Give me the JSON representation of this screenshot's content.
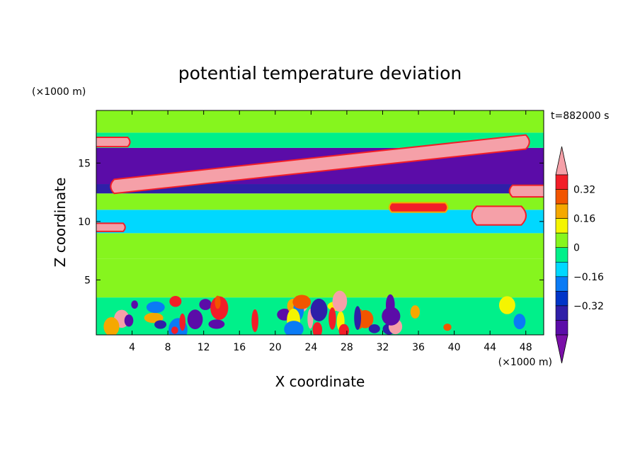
{
  "chart_data": {
    "type": "heatmap",
    "title": "potential temperature deviation",
    "xlabel": "X coordinate",
    "ylabel": "Z coordinate",
    "x_unit": "(×1000 m)",
    "y_unit": "(×1000 m)",
    "time_label": "t=882000 s",
    "xlim": [
      0,
      50
    ],
    "ylim": [
      0.3,
      19.5
    ],
    "x_ticks": [
      4,
      8,
      12,
      16,
      20,
      24,
      28,
      32,
      36,
      40,
      44,
      48
    ],
    "x_tick_labels": [
      "4",
      "8",
      "12",
      "16",
      "20",
      "24",
      "28",
      "32",
      "36",
      "40",
      "44",
      "48"
    ],
    "y_ticks": [
      5,
      10,
      15
    ],
    "y_tick_labels": [
      "5",
      "10",
      "15"
    ],
    "colorbar": {
      "levels": [
        -0.48,
        -0.4,
        -0.32,
        -0.24,
        -0.16,
        -0.08,
        0,
        0.08,
        0.16,
        0.24,
        0.32,
        0.4
      ],
      "tick_values": [
        0.32,
        0.16,
        0,
        -0.16,
        -0.32
      ],
      "tick_labels": [
        "0.32",
        "0.16",
        "0",
        "−0.16",
        "−0.32"
      ],
      "colors": [
        "#7a0fa8",
        "#5b0ca8",
        "#2f1fa8",
        "#0035c8",
        "#0a7bf5",
        "#00d8ff",
        "#00f08a",
        "#86f51e",
        "#f5f500",
        "#f5a800",
        "#f25500",
        "#f21e28",
        "#f5a0a8"
      ],
      "extend": "both"
    },
    "bands": [
      {
        "z_from": 0.3,
        "z_to": 3.5,
        "level": -0.04,
        "description": "turbulent boundary layer"
      },
      {
        "z_from": 3.5,
        "z_to": 6.8,
        "level": 0.04
      },
      {
        "z_from": 6.8,
        "z_to": 9.0,
        "level": 0.04
      },
      {
        "z_from": 9.0,
        "z_to": 11.0,
        "level": -0.1
      },
      {
        "z_from": 11.0,
        "z_to": 12.4,
        "level": 0.0
      },
      {
        "z_from": 12.4,
        "z_to": 13.2,
        "level": -0.36
      },
      {
        "z_from": 13.2,
        "z_to": 16.3,
        "level": -0.44
      },
      {
        "z_from": 16.3,
        "z_to": 17.6,
        "level": -0.08
      },
      {
        "z_from": 17.6,
        "z_to": 19.5,
        "level": 0.04
      }
    ],
    "features": [
      {
        "name": "warm-layer-main",
        "x": [
          2,
          48
        ],
        "z_center": [
          13.0,
          16.8
        ],
        "thickness": 1.2,
        "level": 0.44
      },
      {
        "name": "warm-layer-upper-left",
        "x": [
          0,
          3.5
        ],
        "z_center": [
          16.8,
          16.8
        ],
        "thickness": 0.8,
        "level": 0.44
      },
      {
        "name": "warm-blob-36",
        "x": [
          33,
          39
        ],
        "z_center": [
          11.2,
          11.2
        ],
        "thickness": 0.8,
        "level": 0.32
      },
      {
        "name": "warm-blob-44",
        "x": [
          42.5,
          47.5
        ],
        "z_center": [
          10.5,
          10.5
        ],
        "thickness": 1.6,
        "level": 0.44
      },
      {
        "name": "warm-blob-48",
        "x": [
          46.5,
          50
        ],
        "z_center": [
          12.6,
          12.6
        ],
        "thickness": 1.0,
        "level": 0.44
      },
      {
        "name": "warm-blob-left",
        "x": [
          0,
          3
        ],
        "z_center": [
          9.5,
          9.5
        ],
        "thickness": 0.7,
        "level": 0.44
      }
    ]
  }
}
